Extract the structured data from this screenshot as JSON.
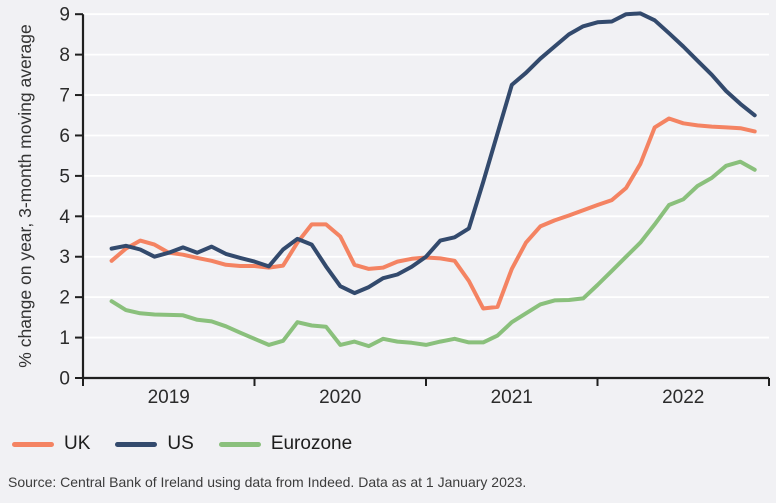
{
  "chart_data": {
    "type": "line",
    "title": "",
    "ylabel": "% change on year, 3-month moving average",
    "xlabel": "",
    "x_tick_labels": [
      "2019",
      "2020",
      "2021",
      "2022"
    ],
    "y_ticks": [
      0,
      1,
      2,
      3,
      4,
      5,
      6,
      7,
      8,
      9
    ],
    "ylim": [
      0,
      9
    ],
    "frequency": "monthly",
    "start": "2019-03",
    "end": "2022-12",
    "grid": "horizontal-white-gridlines",
    "legend_position": "bottom-left",
    "series": [
      {
        "name": "UK",
        "color": "#f48362",
        "values": [
          2.9,
          3.2,
          3.4,
          3.3,
          3.1,
          3.05,
          2.97,
          2.9,
          2.8,
          2.77,
          2.77,
          2.73,
          2.78,
          3.35,
          3.8,
          3.8,
          3.5,
          2.8,
          2.7,
          2.73,
          2.88,
          2.95,
          2.98,
          2.96,
          2.9,
          2.4,
          1.72,
          1.76,
          2.7,
          3.35,
          3.75,
          3.9,
          4.02,
          4.15,
          4.28,
          4.4,
          4.7,
          5.3,
          6.2,
          6.42,
          6.3,
          6.25,
          6.22,
          6.2,
          6.18,
          6.1
        ]
      },
      {
        "name": "US",
        "color": "#334a6d",
        "values": [
          3.2,
          3.27,
          3.18,
          3.0,
          3.1,
          3.23,
          3.1,
          3.25,
          3.07,
          2.97,
          2.88,
          2.76,
          3.18,
          3.44,
          3.3,
          2.76,
          2.27,
          2.1,
          2.25,
          2.47,
          2.56,
          2.75,
          3.0,
          3.4,
          3.48,
          3.7,
          4.85,
          6.05,
          7.25,
          7.55,
          7.9,
          8.2,
          8.5,
          8.7,
          8.8,
          8.82,
          9.0,
          9.02,
          8.85,
          8.53,
          8.2,
          7.85,
          7.5,
          7.1,
          6.78,
          6.5
        ]
      },
      {
        "name": "Eurozone",
        "color": "#8ac07c",
        "values": [
          1.9,
          1.68,
          1.6,
          1.57,
          1.56,
          1.55,
          1.44,
          1.4,
          1.28,
          1.12,
          0.97,
          0.82,
          0.92,
          1.38,
          1.3,
          1.27,
          0.82,
          0.9,
          0.79,
          0.97,
          0.9,
          0.87,
          0.82,
          0.9,
          0.97,
          0.88,
          0.88,
          1.05,
          1.38,
          1.6,
          1.82,
          1.92,
          1.93,
          1.97,
          2.3,
          2.65,
          3.0,
          3.35,
          3.8,
          4.28,
          4.42,
          4.75,
          4.95,
          5.25,
          5.35,
          5.15
        ]
      }
    ]
  },
  "legend": {
    "items": [
      {
        "label": "UK",
        "color": "#f48362"
      },
      {
        "label": "US",
        "color": "#334a6d"
      },
      {
        "label": "Eurozone",
        "color": "#8ac07c"
      }
    ]
  },
  "source_note": "Source: Central Bank of Ireland using data from Indeed. Data as at 1 January 2023.",
  "colors": {
    "background": "#f1f1f4",
    "gridline": "#ffffff",
    "axis": "#1f1f1f",
    "tick_text": "#2b2b2b",
    "source_text": "#3c3c3c"
  }
}
